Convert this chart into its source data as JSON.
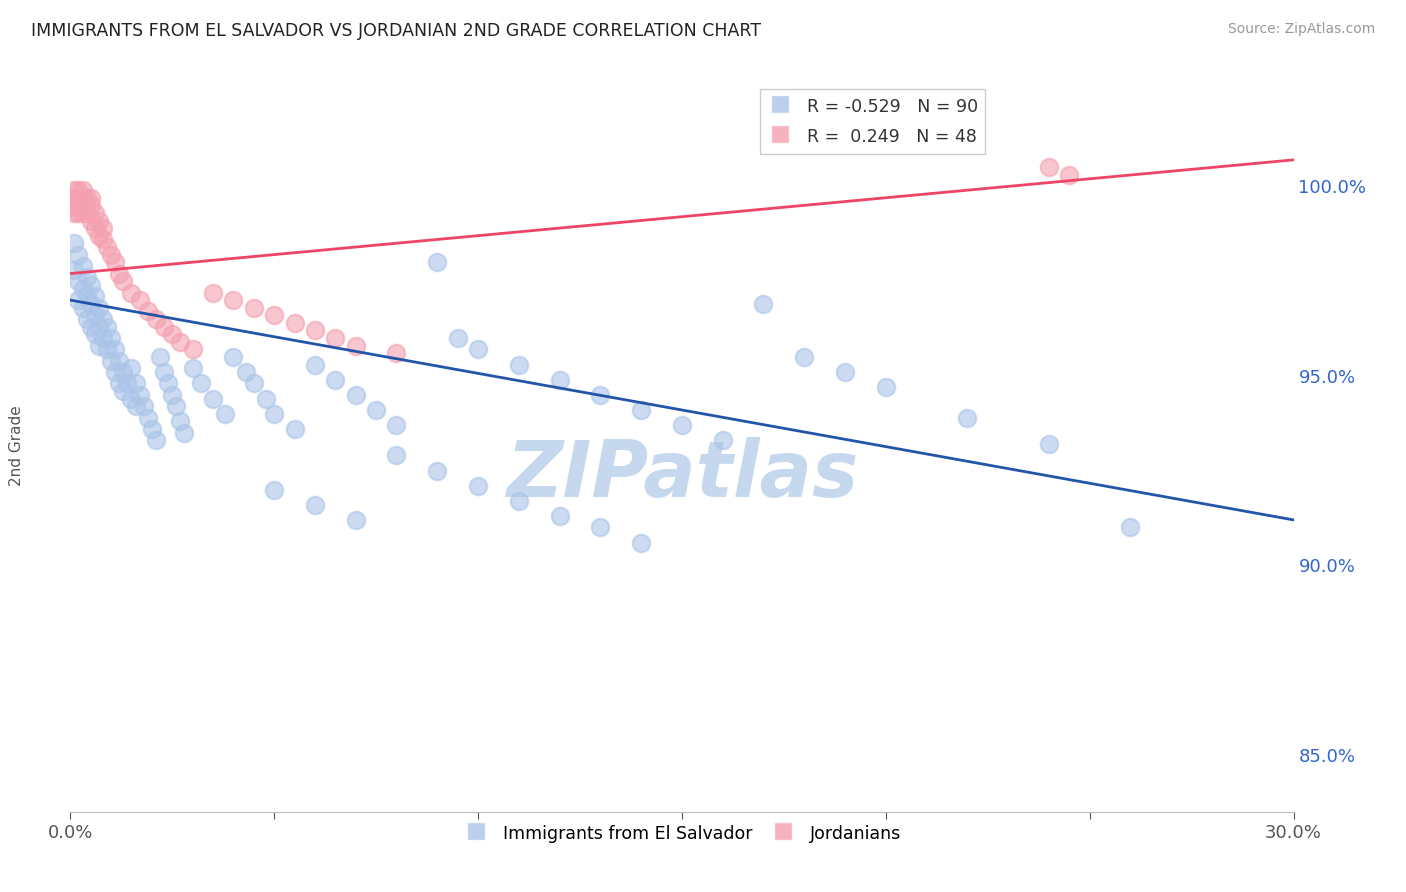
{
  "title": "IMMIGRANTS FROM EL SALVADOR VS JORDANIAN 2ND GRADE CORRELATION CHART",
  "source": "Source: ZipAtlas.com",
  "series1_label": "Immigrants from El Salvador",
  "series2_label": "Jordanians",
  "series1_color": "#aac4e8",
  "series2_color": "#f4a0b0",
  "trendline1_color": "#2255aa",
  "trendline2_color": "#ee4466",
  "watermark_text": "ZIPatlas",
  "watermark_color": "#c5d8ee",
  "grid_color": "#cccccc",
  "background_color": "#ffffff",
  "title_color": "#222222",
  "source_color": "#999999",
  "right_axis_color": "#3366cc",
  "ylabel_color": "#555555",
  "xlim": [
    0.0,
    0.3
  ],
  "ylim": [
    0.835,
    1.028
  ],
  "y_ticks": [
    0.85,
    0.9,
    0.95,
    1.0
  ],
  "y_tick_labels": [
    "85.0%",
    "90.0%",
    "95.0%",
    "100.0%"
  ],
  "legend1_text": "R = -0.529   N = 90",
  "legend2_text": "R =  0.249   N = 48",
  "blue_x": [
    0.001,
    0.001,
    0.002,
    0.002,
    0.002,
    0.003,
    0.003,
    0.003,
    0.004,
    0.004,
    0.004,
    0.005,
    0.005,
    0.005,
    0.006,
    0.006,
    0.006,
    0.007,
    0.007,
    0.007,
    0.008,
    0.008,
    0.009,
    0.009,
    0.01,
    0.01,
    0.011,
    0.011,
    0.012,
    0.012,
    0.013,
    0.013,
    0.014,
    0.015,
    0.015,
    0.016,
    0.016,
    0.017,
    0.018,
    0.019,
    0.02,
    0.021,
    0.022,
    0.023,
    0.024,
    0.025,
    0.026,
    0.027,
    0.028,
    0.03,
    0.032,
    0.035,
    0.038,
    0.04,
    0.043,
    0.045,
    0.048,
    0.05,
    0.055,
    0.06,
    0.065,
    0.07,
    0.075,
    0.08,
    0.09,
    0.095,
    0.1,
    0.11,
    0.12,
    0.13,
    0.14,
    0.15,
    0.16,
    0.17,
    0.18,
    0.19,
    0.2,
    0.22,
    0.24,
    0.26,
    0.05,
    0.06,
    0.07,
    0.08,
    0.09,
    0.1,
    0.11,
    0.12,
    0.13,
    0.14
  ],
  "blue_y": [
    0.985,
    0.978,
    0.982,
    0.975,
    0.97,
    0.979,
    0.973,
    0.968,
    0.976,
    0.971,
    0.965,
    0.974,
    0.969,
    0.963,
    0.971,
    0.966,
    0.961,
    0.968,
    0.963,
    0.958,
    0.965,
    0.96,
    0.963,
    0.957,
    0.96,
    0.954,
    0.957,
    0.951,
    0.954,
    0.948,
    0.951,
    0.946,
    0.948,
    0.952,
    0.944,
    0.948,
    0.942,
    0.945,
    0.942,
    0.939,
    0.936,
    0.933,
    0.955,
    0.951,
    0.948,
    0.945,
    0.942,
    0.938,
    0.935,
    0.952,
    0.948,
    0.944,
    0.94,
    0.955,
    0.951,
    0.948,
    0.944,
    0.94,
    0.936,
    0.953,
    0.949,
    0.945,
    0.941,
    0.937,
    0.98,
    0.96,
    0.957,
    0.953,
    0.949,
    0.945,
    0.941,
    0.937,
    0.933,
    0.969,
    0.955,
    0.951,
    0.947,
    0.939,
    0.932,
    0.91,
    0.92,
    0.916,
    0.912,
    0.929,
    0.925,
    0.921,
    0.917,
    0.913,
    0.91,
    0.906
  ],
  "pink_x": [
    0.001,
    0.001,
    0.001,
    0.001,
    0.002,
    0.002,
    0.002,
    0.002,
    0.003,
    0.003,
    0.003,
    0.003,
    0.004,
    0.004,
    0.004,
    0.005,
    0.005,
    0.005,
    0.006,
    0.006,
    0.007,
    0.007,
    0.008,
    0.008,
    0.009,
    0.01,
    0.011,
    0.012,
    0.013,
    0.015,
    0.017,
    0.019,
    0.021,
    0.023,
    0.025,
    0.027,
    0.03,
    0.035,
    0.04,
    0.045,
    0.05,
    0.055,
    0.06,
    0.065,
    0.07,
    0.08,
    0.24,
    0.245
  ],
  "pink_y": [
    0.999,
    0.997,
    0.995,
    0.993,
    0.999,
    0.997,
    0.995,
    0.993,
    0.999,
    0.997,
    0.995,
    0.993,
    0.997,
    0.995,
    0.993,
    0.997,
    0.995,
    0.991,
    0.993,
    0.989,
    0.991,
    0.987,
    0.989,
    0.986,
    0.984,
    0.982,
    0.98,
    0.977,
    0.975,
    0.972,
    0.97,
    0.967,
    0.965,
    0.963,
    0.961,
    0.959,
    0.957,
    0.972,
    0.97,
    0.968,
    0.966,
    0.964,
    0.962,
    0.96,
    0.958,
    0.956,
    1.005,
    1.003
  ]
}
